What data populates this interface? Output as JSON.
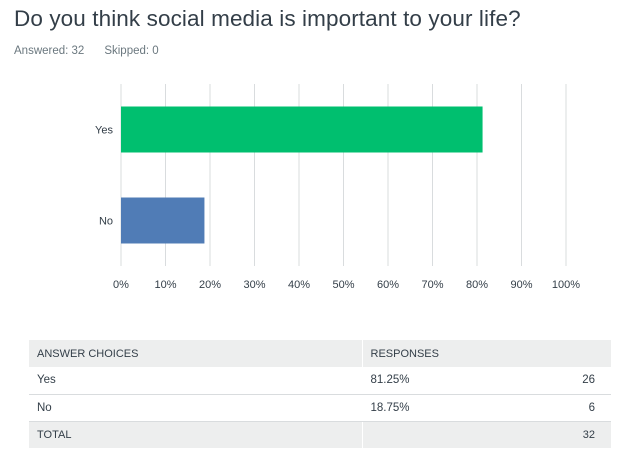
{
  "question": {
    "title": "Do you think social media is important to your life?",
    "answered": "Answered: 32",
    "skipped": "Skipped: 0"
  },
  "chart_data": {
    "type": "bar",
    "orientation": "horizontal",
    "categories": [
      "Yes",
      "No"
    ],
    "values": [
      81.25,
      18.75
    ],
    "colors": [
      "#00bf6f",
      "#507cb6"
    ],
    "xlim": [
      0,
      100
    ],
    "x_ticks": [
      "0%",
      "10%",
      "20%",
      "30%",
      "40%",
      "50%",
      "60%",
      "70%",
      "80%",
      "90%",
      "100%"
    ],
    "grid": true,
    "title": "",
    "xlabel": "",
    "ylabel": ""
  },
  "table": {
    "headers": [
      "ANSWER CHOICES",
      "RESPONSES",
      ""
    ],
    "rows": [
      {
        "choice": "Yes",
        "percent": "81.25%",
        "count": "26"
      },
      {
        "choice": "No",
        "percent": "18.75%",
        "count": "6"
      }
    ],
    "total": {
      "label": "TOTAL",
      "value": "32"
    }
  },
  "colors": {
    "grid": "#d9dcde",
    "text": "#333e48",
    "header_bg": "#edeeee"
  }
}
